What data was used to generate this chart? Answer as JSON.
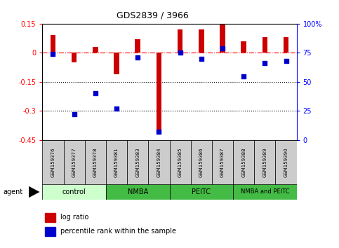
{
  "title": "GDS2839 / 3966",
  "samples": [
    "GSM159376",
    "GSM159377",
    "GSM159378",
    "GSM159381",
    "GSM159383",
    "GSM159384",
    "GSM159385",
    "GSM159386",
    "GSM159387",
    "GSM159388",
    "GSM159389",
    "GSM159390"
  ],
  "log_ratio": [
    0.09,
    -0.05,
    0.03,
    -0.11,
    0.07,
    -0.42,
    0.12,
    0.12,
    0.15,
    0.06,
    0.08,
    0.08
  ],
  "percentile_rank": [
    74,
    22,
    40,
    27,
    71,
    7,
    75,
    70,
    79,
    55,
    66,
    68
  ],
  "groups": [
    {
      "label": "control",
      "start": 0,
      "end": 3
    },
    {
      "label": "NMBA",
      "start": 3,
      "end": 6
    },
    {
      "label": "PEITC",
      "start": 6,
      "end": 9
    },
    {
      "label": "NMBA and PEITC",
      "start": 9,
      "end": 12
    }
  ],
  "ylim_left": [
    -0.45,
    0.15
  ],
  "ylim_right": [
    0,
    100
  ],
  "yticks_left": [
    0.15,
    0.0,
    -0.15,
    -0.3,
    -0.45
  ],
  "yticks_right": [
    100,
    75,
    50,
    25,
    0
  ],
  "bar_color": "#cc0000",
  "dot_color": "#0000cc",
  "dotted_lines": [
    -0.15,
    -0.3
  ],
  "background_color": "#ffffff",
  "legend_log_ratio": "log ratio",
  "legend_percentile": "percentile rank within the sample",
  "agent_label": "agent",
  "control_color": "#ccffcc",
  "group_color": "#44bb44",
  "sample_box_color": "#cccccc",
  "bar_width": 0.25
}
